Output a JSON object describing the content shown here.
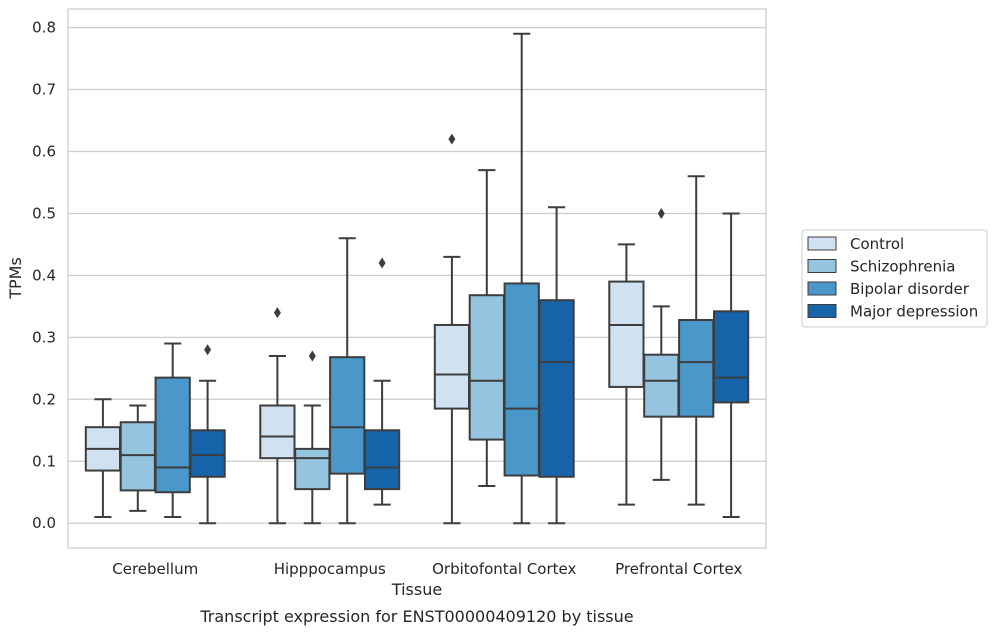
{
  "chart_data": {
    "type": "box",
    "xlabel": "Tissue",
    "ylabel": "TPMs",
    "caption": "Transcript expression for ENST00000409120 by tissue",
    "ylim": [
      -0.04,
      0.83
    ],
    "yticks": [
      0.0,
      0.1,
      0.2,
      0.3,
      0.4,
      0.5,
      0.6,
      0.7,
      0.8
    ],
    "ytick_labels": [
      "0.0",
      "0.1",
      "0.2",
      "0.3",
      "0.4",
      "0.5",
      "0.6",
      "0.7",
      "0.8"
    ],
    "grid": "horizontal",
    "legend_position": "right",
    "categories": [
      "Cerebellum",
      "Hipppocampus",
      "Orbitofontal Cortex",
      "Prefrontal Cortex"
    ],
    "series": [
      {
        "name": "Control",
        "color": "#d0e1f2",
        "boxes": [
          {
            "min": 0.01,
            "q1": 0.085,
            "median": 0.12,
            "q3": 0.155,
            "max": 0.2,
            "outliers": []
          },
          {
            "min": 0.0,
            "q1": 0.105,
            "median": 0.14,
            "q3": 0.19,
            "max": 0.27,
            "outliers": [
              0.34
            ]
          },
          {
            "min": 0.0,
            "q1": 0.185,
            "median": 0.24,
            "q3": 0.32,
            "max": 0.43,
            "outliers": [
              0.62
            ]
          },
          {
            "min": 0.03,
            "q1": 0.22,
            "median": 0.32,
            "q3": 0.39,
            "max": 0.45,
            "outliers": []
          }
        ]
      },
      {
        "name": "Schizophrenia",
        "color": "#94c4df",
        "boxes": [
          {
            "min": 0.02,
            "q1": 0.053,
            "median": 0.11,
            "q3": 0.163,
            "max": 0.19,
            "outliers": []
          },
          {
            "min": 0.0,
            "q1": 0.055,
            "median": 0.105,
            "q3": 0.12,
            "max": 0.19,
            "outliers": [
              0.27
            ]
          },
          {
            "min": 0.06,
            "q1": 0.135,
            "median": 0.23,
            "q3": 0.368,
            "max": 0.57,
            "outliers": []
          },
          {
            "min": 0.07,
            "q1": 0.172,
            "median": 0.23,
            "q3": 0.272,
            "max": 0.35,
            "outliers": [
              0.5
            ]
          }
        ]
      },
      {
        "name": "Bipolar disorder",
        "color": "#4a98c9",
        "boxes": [
          {
            "min": 0.01,
            "q1": 0.05,
            "median": 0.09,
            "q3": 0.235,
            "max": 0.29,
            "outliers": []
          },
          {
            "min": 0.0,
            "q1": 0.08,
            "median": 0.155,
            "q3": 0.268,
            "max": 0.46,
            "outliers": []
          },
          {
            "min": 0.0,
            "q1": 0.077,
            "median": 0.185,
            "q3": 0.387,
            "max": 0.79,
            "outliers": []
          },
          {
            "min": 0.03,
            "q1": 0.172,
            "median": 0.26,
            "q3": 0.328,
            "max": 0.56,
            "outliers": []
          }
        ]
      },
      {
        "name": "Major depression",
        "color": "#1764ab",
        "boxes": [
          {
            "min": 0.0,
            "q1": 0.075,
            "median": 0.11,
            "q3": 0.15,
            "max": 0.23,
            "outliers": [
              0.28
            ]
          },
          {
            "min": 0.03,
            "q1": 0.055,
            "median": 0.09,
            "q3": 0.15,
            "max": 0.23,
            "outliers": [
              0.42
            ]
          },
          {
            "min": 0.0,
            "q1": 0.075,
            "median": 0.26,
            "q3": 0.36,
            "max": 0.51,
            "outliers": []
          },
          {
            "min": 0.01,
            "q1": 0.195,
            "median": 0.235,
            "q3": 0.342,
            "max": 0.5,
            "outliers": []
          }
        ]
      }
    ]
  }
}
